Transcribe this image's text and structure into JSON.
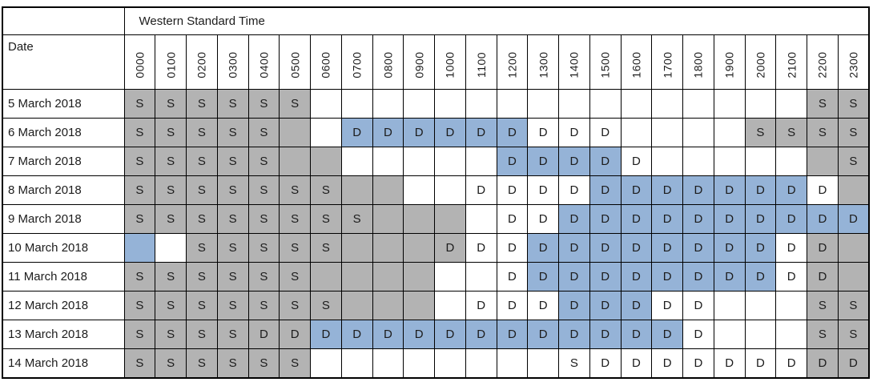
{
  "header": {
    "timezone_label": "Western Standard Time",
    "date_label": "Date",
    "hours": [
      "0000",
      "0100",
      "0200",
      "0300",
      "0400",
      "0500",
      "0600",
      "0700",
      "0800",
      "0900",
      "1000",
      "1100",
      "1200",
      "1300",
      "1400",
      "1500",
      "1600",
      "1700",
      "1800",
      "1900",
      "2000",
      "2100",
      "2200",
      "2300"
    ]
  },
  "colors": {
    "gray_fill": "#b3b3b3",
    "blue_fill": "#95b3d7",
    "grid_line": "#000000",
    "text": "#1c1c1c"
  },
  "cell_code_legend": {
    "first_char": "letter shown in cell: S, D, or - for empty",
    "second_char": "background: g=gray, b=blue, w=white"
  },
  "rows": [
    {
      "date": "5 March 2018",
      "cells": [
        "Sg",
        "Sg",
        "Sg",
        "Sg",
        "Sg",
        "Sg",
        "-w",
        "-w",
        "-w",
        "-w",
        "-w",
        "-w",
        "-w",
        "-w",
        "-w",
        "-w",
        "-w",
        "-w",
        "-w",
        "-w",
        "-w",
        "-w",
        "Sg",
        "Sg"
      ]
    },
    {
      "date": "6 March 2018",
      "cells": [
        "Sg",
        "Sg",
        "Sg",
        "Sg",
        "Sg",
        "-g",
        "-w",
        "Db",
        "Db",
        "Db",
        "Db",
        "Db",
        "Db",
        "Dw",
        "Dw",
        "Dw",
        "-w",
        "-w",
        "-w",
        "-w",
        "Sg",
        "Sg",
        "Sg",
        "Sg"
      ]
    },
    {
      "date": "7 March 2018",
      "cells": [
        "Sg",
        "Sg",
        "Sg",
        "Sg",
        "Sg",
        "-g",
        "-g",
        "-w",
        "-w",
        "-w",
        "-w",
        "-w",
        "Db",
        "Db",
        "Db",
        "Db",
        "Dw",
        "-w",
        "-w",
        "-w",
        "-w",
        "-w",
        "-g",
        "Sg"
      ]
    },
    {
      "date": "8 March 2018",
      "cells": [
        "Sg",
        "Sg",
        "Sg",
        "Sg",
        "Sg",
        "Sg",
        "Sg",
        "-g",
        "-g",
        "-w",
        "-w",
        "Dw",
        "Dw",
        "Dw",
        "Dw",
        "Db",
        "Db",
        "Db",
        "Db",
        "Db",
        "Db",
        "Db",
        "Dw",
        "-g"
      ]
    },
    {
      "date": "9 March 2018",
      "cells": [
        "Sg",
        "Sg",
        "Sg",
        "Sg",
        "Sg",
        "Sg",
        "Sg",
        "Sg",
        "-g",
        "-g",
        "-g",
        "-w",
        "Dw",
        "Dw",
        "Db",
        "Db",
        "Db",
        "Db",
        "Db",
        "Db",
        "Db",
        "Db",
        "Db",
        "Db"
      ]
    },
    {
      "date": "10 March 2018",
      "cells": [
        "-b",
        "-w",
        "Sg",
        "Sg",
        "Sg",
        "Sg",
        "Sg",
        "-g",
        "-g",
        "-g",
        "Dg",
        "Dw",
        "Dw",
        "Db",
        "Db",
        "Db",
        "Db",
        "Db",
        "Db",
        "Db",
        "Db",
        "Dw",
        "Dg",
        "-g"
      ]
    },
    {
      "date": "11 March 2018",
      "cells": [
        "Sg",
        "Sg",
        "Sg",
        "Sg",
        "Sg",
        "Sg",
        "-g",
        "-g",
        "-g",
        "-g",
        "-w",
        "-w",
        "Dw",
        "Db",
        "Db",
        "Db",
        "Db",
        "Db",
        "Db",
        "Db",
        "Db",
        "Dw",
        "Dg",
        "-g"
      ]
    },
    {
      "date": "12 March 2018",
      "cells": [
        "Sg",
        "Sg",
        "Sg",
        "Sg",
        "Sg",
        "Sg",
        "Sg",
        "-g",
        "-g",
        "-g",
        "-w",
        "Dw",
        "Dw",
        "Dw",
        "Db",
        "Db",
        "Db",
        "Dw",
        "Dw",
        "-w",
        "-w",
        "-w",
        "Sg",
        "Sg"
      ]
    },
    {
      "date": "13 March 2018",
      "cells": [
        "Sg",
        "Sg",
        "Sg",
        "Sg",
        "Dg",
        "Dg",
        "Db",
        "Db",
        "Db",
        "Db",
        "Db",
        "Db",
        "Db",
        "Db",
        "Db",
        "Db",
        "Db",
        "Db",
        "Dw",
        "-w",
        "-w",
        "-w",
        "Sg",
        "Sg"
      ]
    },
    {
      "date": "14 March 2018",
      "cells": [
        "Sg",
        "Sg",
        "Sg",
        "Sg",
        "Sg",
        "Sg",
        "-w",
        "-w",
        "-w",
        "-w",
        "-w",
        "-w",
        "-w",
        "-w",
        "Sw",
        "Dw",
        "Dw",
        "Dw",
        "Dw",
        "Dw",
        "Dw",
        "Dw",
        "Dg",
        "Dg"
      ]
    }
  ]
}
